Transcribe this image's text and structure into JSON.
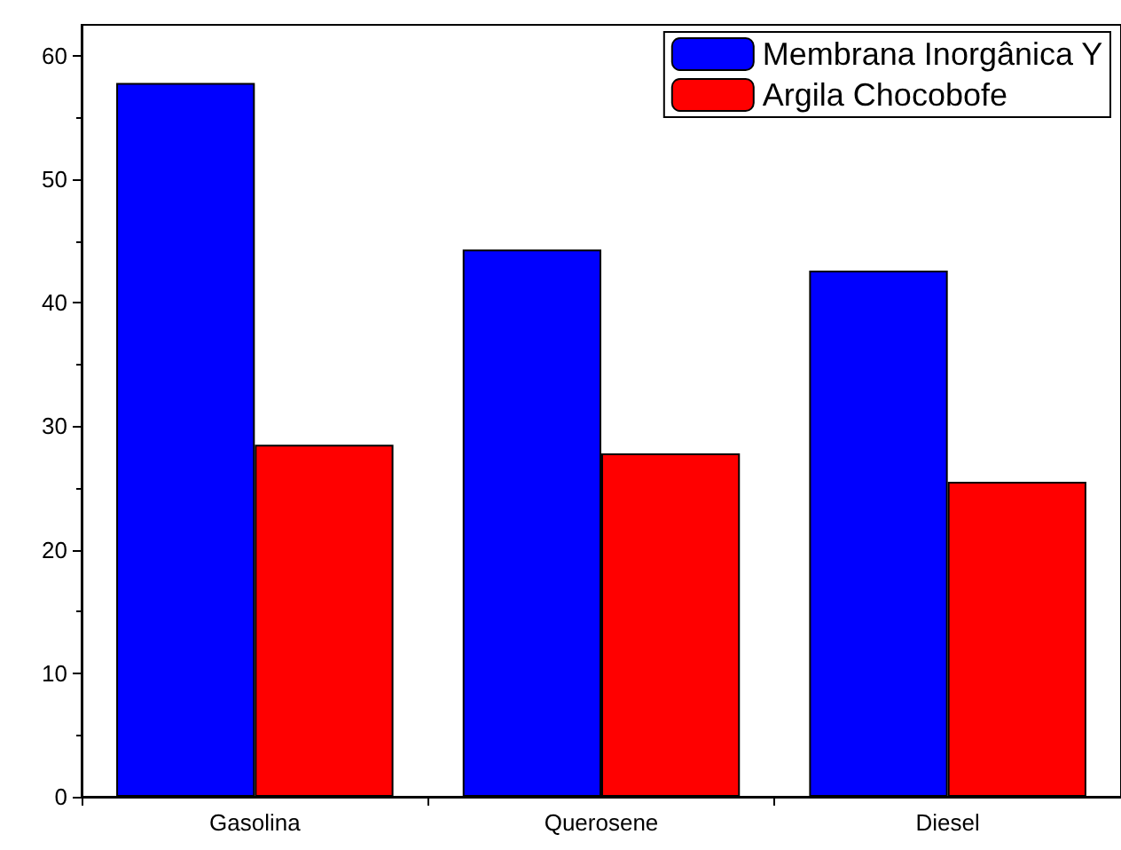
{
  "chart_data": {
    "type": "bar",
    "categories": [
      "Gasolina",
      "Querosene",
      "Diesel"
    ],
    "series": [
      {
        "name": "Membrana Inorgânica Y",
        "color": "#0000ff",
        "values": [
          57.8,
          44.3,
          42.6
        ]
      },
      {
        "name": "Argila Chocobofe",
        "color": "#ff0000",
        "values": [
          28.5,
          27.8,
          25.5
        ]
      }
    ],
    "ylim": [
      0,
      62.5
    ],
    "yticks": [
      0,
      10,
      20,
      30,
      40,
      50,
      60
    ],
    "grid": false,
    "legend": "top right"
  }
}
